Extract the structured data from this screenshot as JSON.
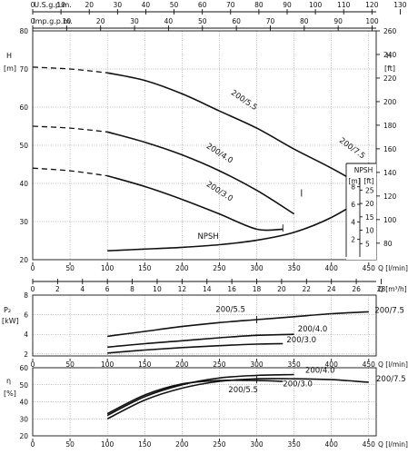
{
  "chart_data": [
    {
      "type": "line",
      "id": "head",
      "ylabel": "H [m]",
      "ylabel_right": "H [ft]",
      "ylim": [
        20,
        80
      ],
      "yticks": [
        20,
        30,
        40,
        50,
        60,
        70,
        80
      ],
      "ylim_ft": [
        66,
        260
      ],
      "yticks_ft": [
        80,
        100,
        120,
        140,
        160,
        180,
        200,
        220,
        240,
        260
      ],
      "xlim": [
        0,
        460
      ],
      "xticks": [
        0,
        50,
        100,
        150,
        200,
        250,
        300,
        350,
        400,
        450
      ],
      "xlabel": "Q [l/min]",
      "xlim_usgpm": [
        0,
        121.5
      ],
      "xticks_usgpm": [
        0,
        10,
        20,
        30,
        40,
        50,
        60,
        70,
        80,
        90,
        100,
        110,
        120,
        130
      ],
      "xlabel_usgpm": "U.S.g.p.m.",
      "xlim_impgpm": [
        0,
        101.2
      ],
      "xticks_impgpm": [
        0,
        10,
        20,
        30,
        40,
        50,
        60,
        70,
        80,
        90,
        100,
        110
      ],
      "xlabel_impgpm": "Imp.g.p.m.",
      "series": [
        {
          "name": "200/5.5",
          "label2": "200/7.5",
          "dashed": {
            "x": [
              0,
              50,
              100
            ],
            "y": [
              70.5,
              70.0,
              69.0
            ]
          },
          "x": [
            100,
            150,
            200,
            250,
            300,
            350,
            400,
            450
          ],
          "y": [
            69,
            67,
            63.5,
            59,
            54.5,
            49,
            44,
            38.5
          ],
          "end_x": 450,
          "end_y": 44.5
        },
        {
          "name": "200/4.0",
          "dashed": {
            "x": [
              0,
              50,
              100
            ],
            "y": [
              55,
              54.5,
              53.5
            ]
          },
          "x": [
            100,
            150,
            200,
            250,
            300,
            350
          ],
          "y": [
            53.5,
            50.8,
            47.5,
            43.3,
            38.2,
            32
          ],
          "end_x": 360,
          "end_y": 37.5
        },
        {
          "name": "200/3.0",
          "dashed": {
            "x": [
              0,
              50,
              100
            ],
            "y": [
              44,
              43.3,
              42
            ]
          },
          "x": [
            100,
            150,
            200,
            250,
            300,
            335
          ],
          "y": [
            42,
            39.2,
            35.8,
            32,
            28,
            28
          ],
          "end_x": 335,
          "end_y": 28.3
        }
      ]
    },
    {
      "type": "line",
      "id": "npsh",
      "name": "NPSH",
      "ylabel_m": "[m]",
      "ylabel_ft": "[ft]",
      "title": "NPSH",
      "yticks_m": [
        2,
        4,
        6,
        8
      ],
      "yticks_ft": [
        5,
        10,
        15,
        20,
        25
      ],
      "x": [
        100,
        150,
        200,
        250,
        300,
        350,
        400,
        450
      ],
      "y_m": [
        0.7,
        0.9,
        1.1,
        1.4,
        1.9,
        2.8,
        4.5,
        7.0
      ]
    },
    {
      "type": "table",
      "id": "flow-m3h",
      "xlabel": "Q [m³/h]",
      "xticks": [
        0,
        2,
        4,
        6,
        8,
        10,
        12,
        14,
        16,
        18,
        20,
        22,
        24,
        26,
        28
      ]
    },
    {
      "type": "line",
      "id": "power",
      "ylabel": "P₂ [kW]",
      "ylim": [
        1.8,
        8
      ],
      "yticks": [
        2,
        4,
        6,
        8
      ],
      "xlim": [
        0,
        460
      ],
      "xticks": [
        0,
        50,
        100,
        150,
        200,
        250,
        300,
        350,
        400,
        450
      ],
      "xlabel": "Q [l/min]",
      "series": [
        {
          "name": "200/5.5",
          "label2": "200/7.5",
          "x": [
            100,
            150,
            200,
            250,
            300,
            350,
            400,
            450
          ],
          "y": [
            3.8,
            4.3,
            4.8,
            5.2,
            5.5,
            5.8,
            6.1,
            6.3
          ]
        },
        {
          "name": "200/4.0",
          "x": [
            100,
            150,
            200,
            250,
            300,
            350
          ],
          "y": [
            2.7,
            3.05,
            3.35,
            3.65,
            3.9,
            4.0
          ]
        },
        {
          "name": "200/3.0",
          "x": [
            100,
            150,
            200,
            250,
            300,
            335
          ],
          "y": [
            2.1,
            2.4,
            2.65,
            2.85,
            3.0,
            3.05
          ]
        }
      ]
    },
    {
      "type": "line",
      "id": "efficiency",
      "ylabel": "η [%]",
      "ylim": [
        20,
        60
      ],
      "yticks": [
        20,
        30,
        40,
        50,
        60
      ],
      "xlim": [
        0,
        460
      ],
      "xticks": [
        0,
        50,
        100,
        150,
        200,
        250,
        300,
        350,
        400,
        450
      ],
      "xlabel": "Q [l/min]",
      "series": [
        {
          "name": "200/5.5",
          "label2": "200/7.5",
          "x": [
            100,
            150,
            200,
            250,
            300,
            350,
            400,
            450
          ],
          "y": [
            30,
            41,
            48,
            52,
            53.5,
            53.5,
            53,
            51.5
          ]
        },
        {
          "name": "200/4.0",
          "x": [
            100,
            150,
            200,
            250,
            300,
            350
          ],
          "y": [
            32,
            43,
            50,
            54,
            55.5,
            56
          ]
        },
        {
          "name": "200/3.0",
          "x": [
            100,
            150,
            200,
            250,
            300,
            335
          ],
          "y": [
            33,
            44,
            50.5,
            52.5,
            52.5,
            52
          ]
        }
      ]
    }
  ]
}
